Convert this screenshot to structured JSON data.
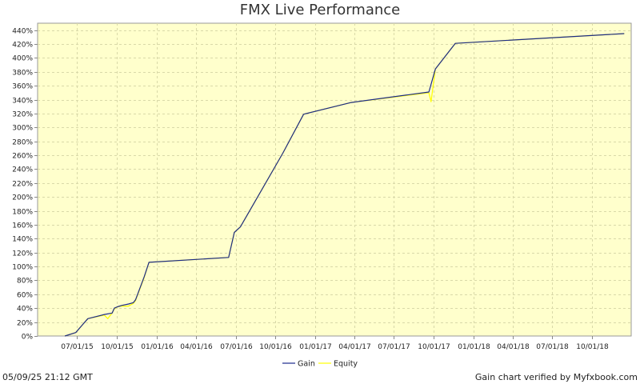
{
  "chart_data": {
    "type": "line",
    "title": "FMX Live Performance",
    "xlabel": "",
    "ylabel": "",
    "ylim": [
      0,
      450
    ],
    "y_ticks": [
      0,
      20,
      40,
      60,
      80,
      100,
      120,
      140,
      160,
      180,
      200,
      220,
      240,
      260,
      280,
      300,
      320,
      340,
      360,
      380,
      400,
      420,
      440
    ],
    "y_tick_suffix": "%",
    "xlim": [
      "2015-04-01",
      "2018-12-31"
    ],
    "x_ticks": [
      "07/01/15",
      "10/01/15",
      "01/01/16",
      "04/01/16",
      "07/01/16",
      "10/01/16",
      "01/01/17",
      "04/01/17",
      "07/01/17",
      "10/01/17",
      "01/01/18",
      "04/01/18",
      "07/01/18",
      "10/01/18"
    ],
    "x_tick_dates": [
      "2015-07-01",
      "2015-10-01",
      "2016-01-01",
      "2016-04-01",
      "2016-07-01",
      "2016-10-01",
      "2017-01-01",
      "2017-04-01",
      "2017-07-01",
      "2017-10-01",
      "2018-01-01",
      "2018-04-01",
      "2018-07-01",
      "2018-10-01"
    ],
    "grid": true,
    "legend_position": "bottom",
    "plot_background": "#ffffcc",
    "series": [
      {
        "name": "Gain",
        "color": "#1c2a8c",
        "points": [
          [
            "2015-06-03",
            0
          ],
          [
            "2015-06-28",
            5
          ],
          [
            "2015-07-12",
            15
          ],
          [
            "2015-07-26",
            25
          ],
          [
            "2015-09-02",
            31
          ],
          [
            "2015-09-20",
            33
          ],
          [
            "2015-09-25",
            40
          ],
          [
            "2015-10-02",
            42
          ],
          [
            "2015-10-12",
            44
          ],
          [
            "2015-10-28",
            46
          ],
          [
            "2015-11-08",
            48
          ],
          [
            "2015-11-13",
            52
          ],
          [
            "2015-12-03",
            85
          ],
          [
            "2015-12-14",
            106
          ],
          [
            "2016-06-15",
            113
          ],
          [
            "2016-06-28",
            149
          ],
          [
            "2016-07-12",
            157
          ],
          [
            "2016-10-18",
            263
          ],
          [
            "2016-12-05",
            319
          ],
          [
            "2017-03-25",
            336
          ],
          [
            "2017-09-20",
            351
          ],
          [
            "2017-10-05",
            384
          ],
          [
            "2017-11-20",
            421
          ],
          [
            "2018-12-15",
            435
          ]
        ]
      },
      {
        "name": "Equity",
        "color": "#ffff00",
        "points": [
          [
            "2015-06-03",
            0
          ],
          [
            "2015-06-28",
            5
          ],
          [
            "2015-07-12",
            15
          ],
          [
            "2015-07-26",
            25
          ],
          [
            "2015-09-02",
            30
          ],
          [
            "2015-09-10",
            25
          ],
          [
            "2015-09-20",
            33
          ],
          [
            "2015-09-25",
            39
          ],
          [
            "2015-10-02",
            42
          ],
          [
            "2015-10-12",
            43
          ],
          [
            "2015-10-28",
            43
          ],
          [
            "2015-11-08",
            47
          ],
          [
            "2015-11-13",
            51
          ],
          [
            "2015-12-03",
            84
          ],
          [
            "2015-12-14",
            106
          ],
          [
            "2016-06-15",
            113
          ],
          [
            "2016-06-28",
            149
          ],
          [
            "2016-07-12",
            157
          ],
          [
            "2016-10-18",
            263
          ],
          [
            "2016-12-05",
            319
          ],
          [
            "2017-03-25",
            336
          ],
          [
            "2017-09-20",
            350
          ],
          [
            "2017-09-25",
            337
          ],
          [
            "2017-10-05",
            384
          ],
          [
            "2017-11-20",
            421
          ],
          [
            "2018-12-15",
            435
          ]
        ]
      }
    ]
  },
  "footer": {
    "timestamp": "05/09/25 21:12 GMT",
    "verified": "Gain chart verified by Myfxbook.com"
  }
}
